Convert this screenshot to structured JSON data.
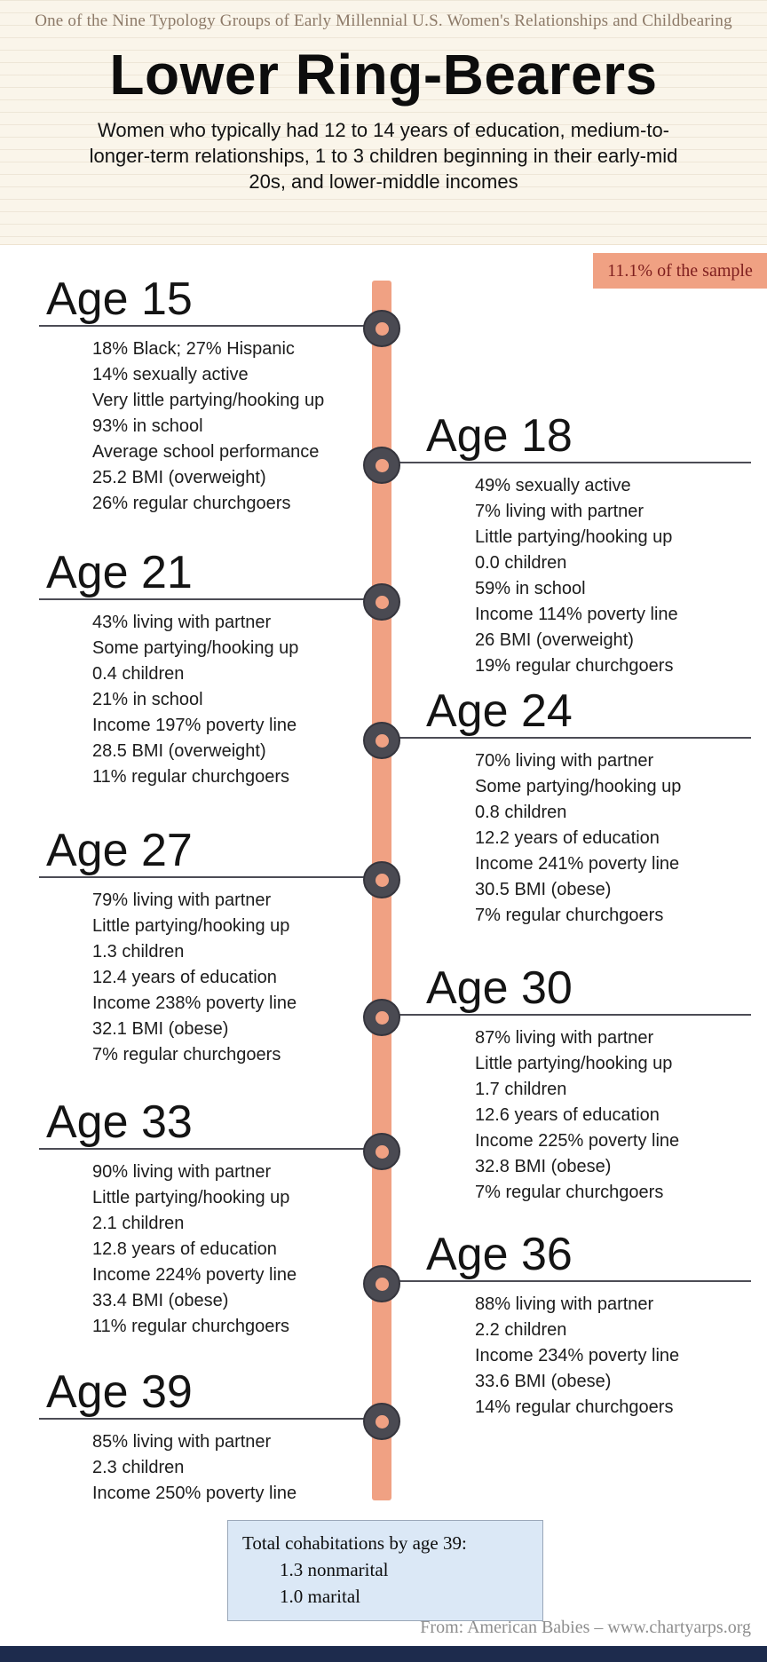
{
  "header": {
    "tagline": "One of the Nine Typology Groups of Early Millennial U.S. Women's Relationships and Childbearing",
    "title": "Lower Ring-Bearers",
    "subtitle": "Women who typically had 12 to 14 years of education, medium-to-longer-term relationships, 1 to 3 children beginning in their early-mid 20s, and lower-middle incomes"
  },
  "badge": {
    "label": "11.1% of the sample"
  },
  "timeline": [
    {
      "age": "Age 15",
      "facts": [
        "18% Black; 27% Hispanic",
        "14% sexually active",
        "Very little partying/hooking up",
        "93% in school",
        "Average school performance",
        "25.2 BMI (overweight)",
        "26% regular churchgoers"
      ]
    },
    {
      "age": "Age 18",
      "facts": [
        "49% sexually active",
        "7% living with partner",
        "Little partying/hooking up",
        "0.0 children",
        "59% in school",
        "Income 114% poverty line",
        "26 BMI (overweight)",
        "19% regular churchgoers"
      ]
    },
    {
      "age": "Age 21",
      "facts": [
        "43% living with partner",
        "Some partying/hooking up",
        "0.4 children",
        "21% in school",
        "Income 197% poverty line",
        "28.5 BMI (overweight)",
        "11% regular churchgoers"
      ]
    },
    {
      "age": "Age 24",
      "facts": [
        "70% living with partner",
        "Some partying/hooking up",
        "0.8 children",
        "12.2 years of education",
        "Income 241% poverty line",
        "30.5 BMI (obese)",
        "7% regular churchgoers"
      ]
    },
    {
      "age": "Age 27",
      "facts": [
        "79% living with partner",
        "Little partying/hooking up",
        "1.3 children",
        "12.4 years of education",
        "Income 238% poverty line",
        "32.1 BMI (obese)",
        "7% regular churchgoers"
      ]
    },
    {
      "age": "Age 30",
      "facts": [
        "87% living with partner",
        "Little partying/hooking up",
        "1.7 children",
        "12.6 years of education",
        "Income 225% poverty line",
        "32.8 BMI (obese)",
        "7% regular churchgoers"
      ]
    },
    {
      "age": "Age 33",
      "facts": [
        "90% living with partner",
        "Little partying/hooking up",
        "2.1 children",
        "12.8 years of education",
        "Income 224% poverty line",
        "33.4 BMI (obese)",
        "11% regular churchgoers"
      ]
    },
    {
      "age": "Age 36",
      "facts": [
        "88% living with partner",
        "2.2 children",
        "Income 234% poverty line",
        "33.6 BMI (obese)",
        "14% regular churchgoers"
      ]
    },
    {
      "age": "Age 39",
      "facts": [
        "85% living with partner",
        "2.3 children",
        "Income 250% poverty line"
      ]
    }
  ],
  "summary_box": {
    "title": "Total cohabitations by age 39:",
    "lines": [
      "1.3 nonmarital",
      "1.0 marital"
    ]
  },
  "footer": {
    "credit": "From: American Babies – www.chartyarps.org"
  },
  "colors": {
    "accent": "#f0a183",
    "node": "#4a4a52",
    "badge_text": "#7e1e1e",
    "summary_box_bg": "#dbe8f6",
    "footer_bar": "#1d2b4d",
    "tagline_text": "#8d7a68"
  }
}
